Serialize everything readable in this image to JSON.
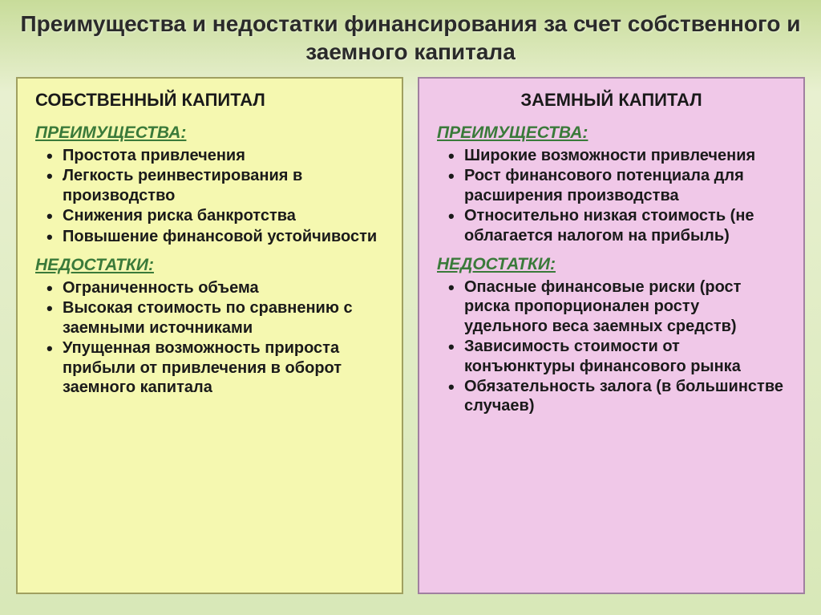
{
  "title": "Преимущества и недостатки финансирования за счет собственного и заемного капитала",
  "left": {
    "heading": "СОБСТВЕННЫЙ КАПИТАЛ",
    "advantages_label": "ПРЕИМУЩЕСТВА:",
    "advantages": [
      "Простота привлечения",
      "Легкость реинвестирования в производство",
      "Снижения риска банкротства",
      "Повышение финансовой устойчивости"
    ],
    "disadvantages_label": "НЕДОСТАТКИ:",
    "disadvantages": [
      "Ограниченность объема",
      "Высокая стоимость по сравнению с заемными источниками",
      "Упущенная возможность прироста прибыли от привлечения в оборот заемного капитала"
    ]
  },
  "right": {
    "heading": "ЗАЕМНЫЙ  КАПИТАЛ",
    "advantages_label": "ПРЕИМУЩЕСТВА:",
    "advantages": [
      "Широкие возможности привлечения",
      "Рост финансового потенциала для расширения производства",
      "Относительно низкая стоимость (не облагается налогом на прибыль)"
    ],
    "disadvantages_label": "НЕДОСТАТКИ:",
    "disadvantages": [
      "Опасные финансовые риски (рост риска пропорционален росту удельного веса заемных средств)",
      "Зависимость стоимости от конъюнктуры финансового рынка",
      "Обязательность залога (в большинстве случаев)"
    ]
  },
  "colors": {
    "bg_top": "#c8dc9a",
    "bg_bottom": "#d8e8b8",
    "left_bg": "#f5f8b0",
    "right_bg": "#f0c8e8",
    "section_label": "#3a7a3a",
    "text": "#1a1a1a"
  },
  "fonts": {
    "title_size": 28,
    "heading_size": 22,
    "section_size": 21,
    "item_size": 20
  }
}
